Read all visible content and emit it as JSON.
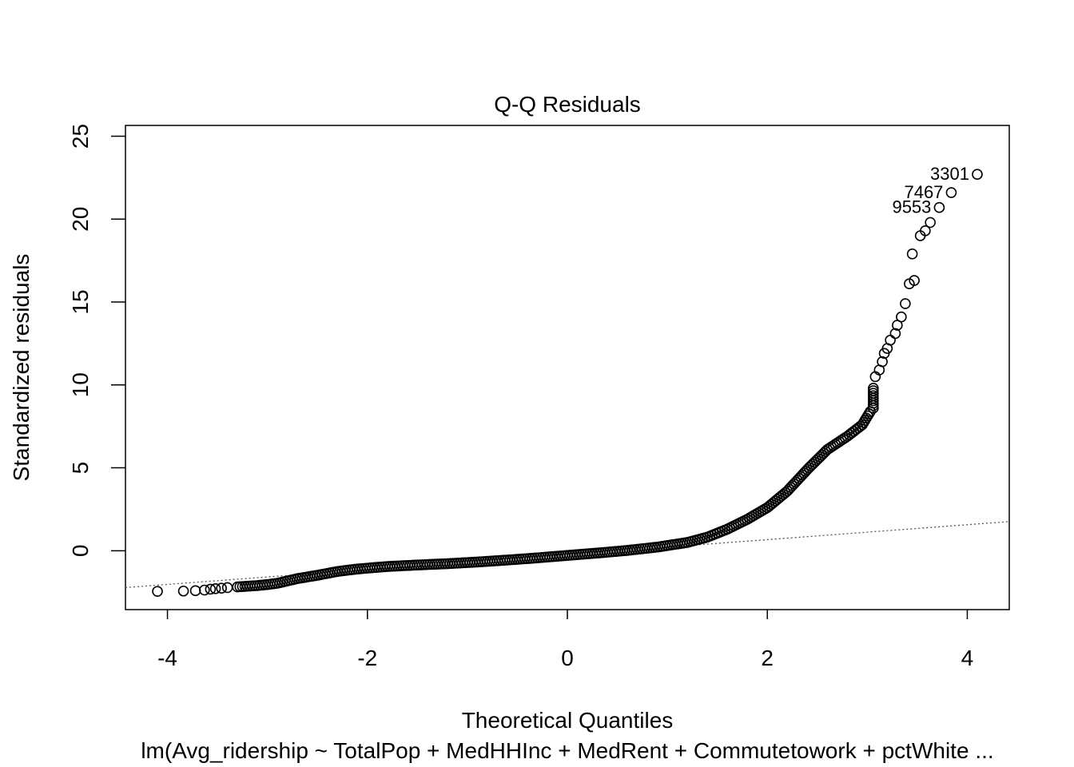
{
  "chart_data": {
    "type": "scatter",
    "title": "Q-Q Residuals",
    "xlabel": "Theoretical Quantiles",
    "ylabel": "Standardized residuals",
    "subtitle": "lm(Avg_ridership ~ TotalPop + MedHHInc + MedRent + Commutetowork + pctWhite ...",
    "xlim": [
      -4.42,
      4.42
    ],
    "ylim": [
      -3.55,
      25.65
    ],
    "xticks": [
      -4,
      -2,
      0,
      2,
      4
    ],
    "yticks": [
      0,
      5,
      10,
      15,
      20,
      25
    ],
    "reference_line": {
      "intercept": -0.23,
      "slope": 0.45
    },
    "points": [
      [
        -4.1,
        -2.45
      ],
      [
        -3.84,
        -2.43
      ],
      [
        -3.72,
        -2.41
      ],
      [
        -3.63,
        -2.37
      ],
      [
        -3.57,
        -2.32
      ],
      [
        -3.52,
        -2.29
      ],
      [
        -3.46,
        -2.26
      ],
      [
        -3.4,
        -2.22
      ],
      [
        -3.3,
        -2.18
      ],
      [
        -3.2,
        -2.14
      ],
      [
        -3.1,
        -2.1
      ],
      [
        -3.0,
        -2.04
      ],
      [
        -2.9,
        -1.96
      ],
      [
        -2.8,
        -1.82
      ],
      [
        -2.7,
        -1.68
      ],
      [
        -2.5,
        -1.48
      ],
      [
        -2.3,
        -1.25
      ],
      [
        -2.1,
        -1.1
      ],
      [
        -1.8,
        -0.95
      ],
      [
        -1.5,
        -0.86
      ],
      [
        -1.2,
        -0.78
      ],
      [
        -0.9,
        -0.68
      ],
      [
        -0.6,
        -0.56
      ],
      [
        -0.3,
        -0.43
      ],
      [
        0.0,
        -0.28
      ],
      [
        0.3,
        -0.14
      ],
      [
        0.6,
        0.02
      ],
      [
        0.9,
        0.22
      ],
      [
        1.2,
        0.5
      ],
      [
        1.4,
        0.82
      ],
      [
        1.6,
        1.3
      ],
      [
        1.8,
        1.9
      ],
      [
        2.0,
        2.6
      ],
      [
        2.2,
        3.6
      ],
      [
        2.4,
        4.9
      ],
      [
        2.6,
        6.1
      ],
      [
        2.8,
        6.9
      ],
      [
        2.95,
        7.6
      ],
      [
        3.03,
        8.4
      ],
      [
        3.06,
        8.6
      ],
      [
        3.06,
        9.8
      ],
      [
        3.08,
        10.5
      ],
      [
        3.12,
        10.9
      ],
      [
        3.15,
        11.4
      ],
      [
        3.17,
        11.9
      ],
      [
        3.2,
        12.2
      ],
      [
        3.23,
        12.7
      ],
      [
        3.28,
        13.1
      ],
      [
        3.3,
        13.6
      ],
      [
        3.34,
        14.1
      ],
      [
        3.38,
        14.9
      ],
      [
        3.42,
        16.1
      ],
      [
        3.47,
        16.3
      ],
      [
        3.45,
        17.9
      ],
      [
        3.53,
        19.0
      ],
      [
        3.58,
        19.3
      ],
      [
        3.63,
        19.8
      ],
      [
        3.72,
        20.7
      ],
      [
        3.84,
        21.6
      ],
      [
        4.1,
        22.7
      ]
    ],
    "outlier_labels": [
      {
        "label": "3301",
        "x": 4.1,
        "y": 22.7
      },
      {
        "label": "7467",
        "x": 3.84,
        "y": 21.6
      },
      {
        "label": "9553",
        "x": 3.72,
        "y": 20.7
      }
    ]
  }
}
